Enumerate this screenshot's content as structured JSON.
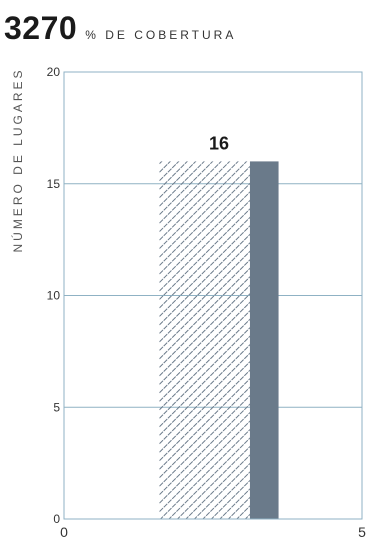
{
  "header": {
    "value": "3270",
    "subtitle": "% DE COBERTURA"
  },
  "colors": {
    "axis": "#8fb2c4",
    "grid": "#8fb2c4",
    "bar_solid": "#6a7a8a",
    "bar_hatch": "#6a7a8a",
    "tick_text": "#333333"
  },
  "chart_data": {
    "type": "bar",
    "title": "",
    "xlabel": "",
    "ylabel": "NÚMERO DE LUGARES",
    "xlim": [
      0,
      5
    ],
    "ylim": [
      0,
      20
    ],
    "x_ticks": [
      "0",
      "5"
    ],
    "y_ticks": [
      "0",
      "5",
      "10",
      "15",
      "20"
    ],
    "grid": true,
    "bars": [
      {
        "x_start": 1.6,
        "x_end": 3.6,
        "value": 16,
        "label": "16"
      }
    ],
    "solid_segment_fraction": 0.24
  }
}
